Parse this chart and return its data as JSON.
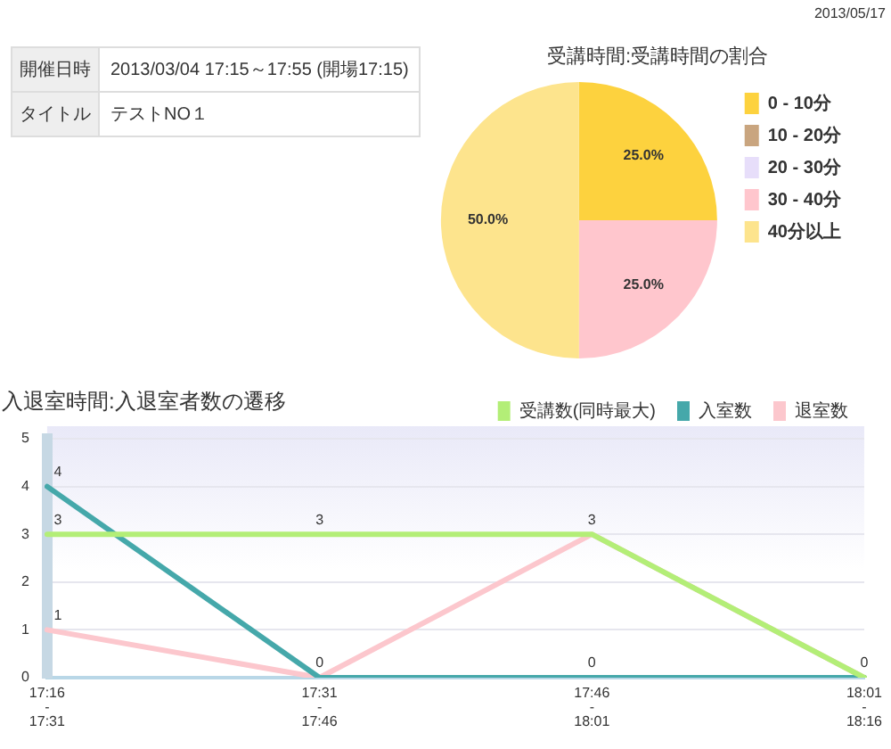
{
  "chart_data": [
    {
      "type": "other",
      "annotations": [
        "開催日時",
        "2013/03/04 17:15～17:55 (開場17:15)",
        "タイトル",
        "テストNO１"
      ]
    },
    {
      "type": "pie",
      "title": "受講時間:受講時間の割合",
      "categories": [
        "0 - 10分",
        "10 - 20分",
        "20 - 30分",
        "30 - 40分",
        "40分以上"
      ],
      "values": [
        25,
        0,
        0,
        25,
        50
      ],
      "colors": [
        "#fdd23e",
        "#c9a57f",
        "#e7defa",
        "#ffc6cd",
        "#fde48d"
      ],
      "value_labels": [
        "25.0%",
        null,
        null,
        "25.0%",
        "50.0%"
      ],
      "legend": "right",
      "annotations": [
        "2013/05/17"
      ]
    },
    {
      "type": "line",
      "title": "入退室時間:入退室者数の遷移",
      "categories": [
        "17:16 - 17:31",
        "17:31 - 17:46",
        "17:46 - 18:01",
        "18:01 - 18:16"
      ],
      "series": [
        {
          "name": "受講数(同時最大)",
          "color": "#b3ee77",
          "values": [
            3,
            3,
            3,
            0
          ],
          "value_labels": [
            "3",
            "3",
            "3",
            "0"
          ]
        },
        {
          "name": "入室数",
          "color": "#45a8aa",
          "values": [
            4,
            0,
            0,
            0
          ],
          "value_labels": [
            "4",
            null,
            "0",
            null
          ]
        },
        {
          "name": "退室数",
          "color": "#fcc7cd",
          "values": [
            1,
            0,
            3,
            0
          ],
          "value_labels": [
            "1",
            "0",
            null,
            null
          ]
        }
      ],
      "ylim": [
        0,
        5
      ],
      "yticks": [
        0,
        1,
        2,
        3,
        4,
        5
      ],
      "grid": "y",
      "legend": "top right",
      "marker": "none"
    }
  ]
}
